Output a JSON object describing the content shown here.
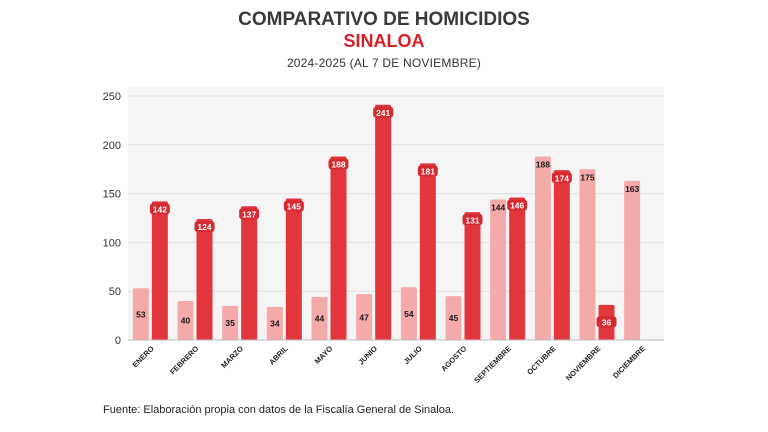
{
  "header": {
    "title": "COMPARATIVO DE HOMICIDIOS",
    "region": "SINALOA",
    "subtitle": "2024-2025 (AL 7 DE NOVIEMBRE)"
  },
  "footer": {
    "source": "Fuente: Elaboración propia con datos de la Fiscalía General de Sinaloa."
  },
  "chart_data": {
    "type": "bar",
    "categories": [
      "ENERO",
      "FEBRERO",
      "MARZO",
      "ABRIL",
      "MAYO",
      "JUNIO",
      "JULIO",
      "AGOSTO",
      "SEPTIEMBRE",
      "OCTUBRE",
      "NOVIEMBRE",
      "DICIEMBRE"
    ],
    "series": [
      {
        "values": [
          53,
          40,
          35,
          34,
          44,
          47,
          54,
          45,
          144,
          188,
          175,
          163
        ],
        "color": "#f4aaa8"
      },
      {
        "values": [
          142,
          124,
          137,
          145,
          188,
          241,
          181,
          131,
          146,
          174,
          36,
          null
        ],
        "color": "#e2353c"
      }
    ],
    "yticks": [
      0,
      50,
      100,
      150,
      200,
      250
    ],
    "ylim": [
      0,
      250
    ],
    "grid": true,
    "legend": "none"
  }
}
